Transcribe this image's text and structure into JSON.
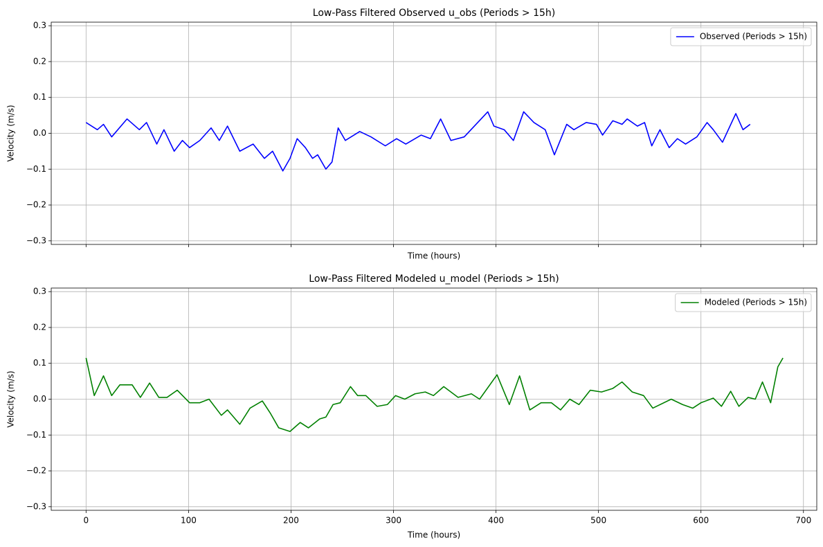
{
  "chart_data": [
    {
      "type": "line",
      "title": "Low-Pass Filtered Observed u_obs (Periods > 15h)",
      "xlabel": "Time (hours)",
      "ylabel": "Velocity (m/s)",
      "x": [
        0,
        11,
        17,
        25,
        40,
        52,
        59,
        69,
        76,
        86,
        94,
        101,
        111,
        122,
        130,
        138,
        150,
        163,
        174,
        182,
        192,
        199,
        206,
        214,
        221,
        226,
        234,
        240,
        246,
        253,
        267,
        278,
        292,
        303,
        312,
        327,
        336,
        346,
        356,
        369,
        392,
        398,
        408,
        417,
        427,
        437,
        448,
        457,
        469,
        476,
        488,
        498,
        504,
        514,
        523,
        528,
        538,
        545,
        552,
        560,
        569,
        577,
        585,
        596,
        606,
        612,
        621,
        634,
        641,
        648
      ],
      "series": [
        {
          "name": "Observed (Periods > 15h)",
          "color": "#0000ff",
          "values": [
            0.03,
            0.01,
            0.025,
            -0.01,
            0.04,
            0.01,
            0.03,
            -0.03,
            0.01,
            -0.05,
            -0.02,
            -0.04,
            -0.02,
            0.015,
            -0.02,
            0.02,
            -0.05,
            -0.03,
            -0.07,
            -0.05,
            -0.105,
            -0.07,
            -0.015,
            -0.04,
            -0.07,
            -0.06,
            -0.1,
            -0.08,
            0.015,
            -0.02,
            0.005,
            -0.01,
            -0.035,
            -0.015,
            -0.03,
            -0.005,
            -0.015,
            0.04,
            -0.02,
            -0.01,
            0.06,
            0.02,
            0.01,
            -0.02,
            0.06,
            0.03,
            0.01,
            -0.06,
            0.025,
            0.01,
            0.03,
            0.025,
            -0.005,
            0.035,
            0.025,
            0.04,
            0.02,
            0.03,
            -0.035,
            0.01,
            -0.04,
            -0.015,
            -0.03,
            -0.01,
            0.03,
            0.01,
            -0.025,
            0.055,
            0.01,
            0.025
          ]
        }
      ],
      "xlim": [
        -34,
        713
      ],
      "ylim": [
        -0.31,
        0.31
      ],
      "xticks": [
        0,
        100,
        200,
        300,
        400,
        500,
        600,
        700
      ],
      "yticks": [
        {
          "value": -0.3,
          "label": "−0.3"
        },
        {
          "value": -0.2,
          "label": "−0.2"
        },
        {
          "value": -0.1,
          "label": "−0.1"
        },
        {
          "value": 0,
          "label": "0.0"
        },
        0.1,
        0.2,
        0.3
      ],
      "grid": true,
      "legend": "upper right"
    },
    {
      "type": "line",
      "title": "Low-Pass Filtered Modeled u_model (Periods > 15h)",
      "xlabel": "Time (hours)",
      "ylabel": "Velocity (m/s)",
      "x": [
        0,
        8,
        17,
        25,
        33,
        45,
        53,
        62,
        71,
        79,
        89,
        101,
        111,
        120,
        132,
        138,
        150,
        160,
        172,
        180,
        188,
        199,
        209,
        217,
        228,
        234,
        241,
        248,
        258,
        265,
        273,
        284,
        294,
        302,
        311,
        321,
        331,
        339,
        349,
        363,
        376,
        384,
        401,
        413,
        423,
        433,
        444,
        454,
        463,
        472,
        481,
        492,
        503,
        514,
        523,
        533,
        544,
        553,
        571,
        582,
        592,
        600,
        612,
        620,
        629,
        637,
        646,
        653,
        660,
        668,
        675,
        680
      ],
      "series": [
        {
          "name": "Modeled (Periods > 15h)",
          "color": "#008000",
          "values": [
            0.115,
            0.01,
            0.065,
            0.01,
            0.04,
            0.04,
            0.005,
            0.045,
            0.005,
            0.005,
            0.025,
            -0.01,
            -0.01,
            0,
            -0.045,
            -0.03,
            -0.07,
            -0.025,
            -0.005,
            -0.04,
            -0.08,
            -0.09,
            -0.065,
            -0.08,
            -0.055,
            -0.05,
            -0.015,
            -0.01,
            0.035,
            0.01,
            0.01,
            -0.02,
            -0.015,
            0.01,
            0,
            0.015,
            0.02,
            0.01,
            0.035,
            0.005,
            0.015,
            0,
            0.068,
            -0.015,
            0.065,
            -0.03,
            -0.01,
            -0.01,
            -0.03,
            0,
            -0.015,
            0.025,
            0.02,
            0.03,
            0.048,
            0.02,
            0.01,
            -0.025,
            0,
            -0.015,
            -0.025,
            -0.01,
            0.003,
            -0.02,
            0.022,
            -0.02,
            0.005,
            0,
            0.048,
            -0.01,
            0.09,
            0.115
          ]
        }
      ],
      "xlim": [
        -34,
        713
      ],
      "ylim": [
        -0.31,
        0.31
      ],
      "xticks": [
        0,
        100,
        200,
        300,
        400,
        500,
        600,
        700
      ],
      "yticks": [
        {
          "value": -0.3,
          "label": "−0.3"
        },
        {
          "value": -0.2,
          "label": "−0.2"
        },
        {
          "value": -0.1,
          "label": "−0.1"
        },
        {
          "value": 0,
          "label": "0.0"
        },
        0.1,
        0.2,
        0.3
      ],
      "grid": true,
      "legend": "upper right"
    }
  ]
}
